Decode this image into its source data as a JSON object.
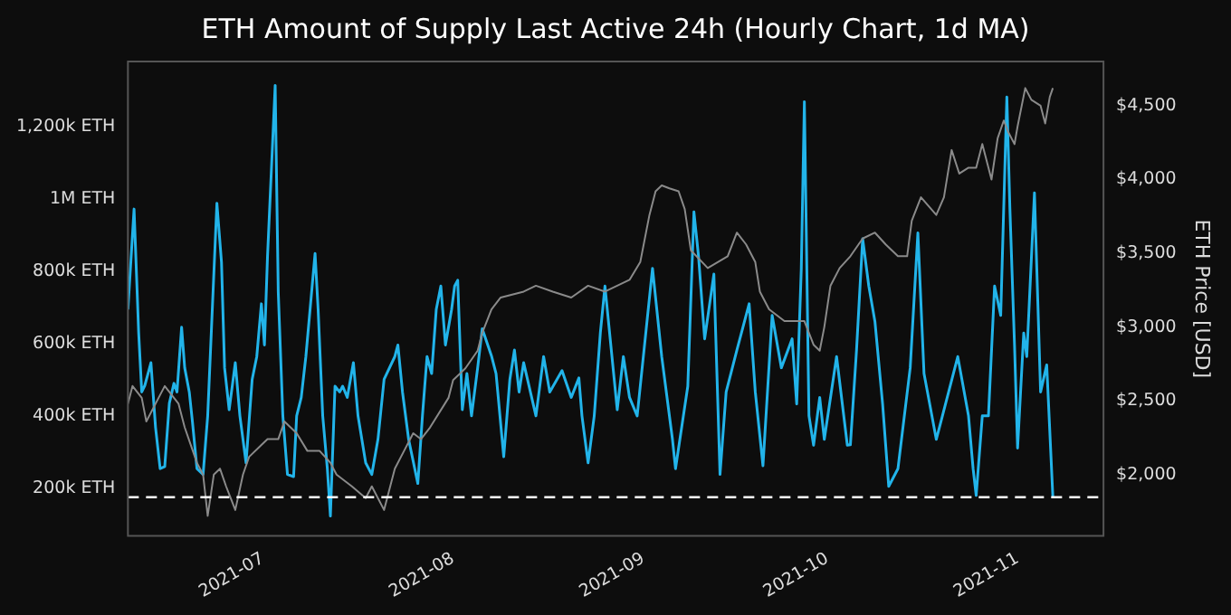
{
  "chart_data": {
    "type": "line",
    "title": "ETH Amount of Supply Last Active 24h (Hourly Chart, 1d MA)",
    "y2label": "ETH Price [USD]",
    "xlim": [
      "2021-06-09",
      "2021-11-15"
    ],
    "xticks": [
      "2021-07",
      "2021-08",
      "2021-09",
      "2021-10",
      "2021-11"
    ],
    "ylim": [
      68000,
      1380000
    ],
    "yticks": [
      {
        "value": 200000,
        "label": "200k ETH"
      },
      {
        "value": 400000,
        "label": "400k ETH"
      },
      {
        "value": 600000,
        "label": "600k ETH"
      },
      {
        "value": 800000,
        "label": "800k ETH"
      },
      {
        "value": 1000000,
        "label": "1M ETH"
      },
      {
        "value": 1200000,
        "label": "1,200k ETH"
      }
    ],
    "y2lim": [
      1584,
      4800
    ],
    "y2ticks": [
      {
        "value": 2000,
        "label": "$2,000"
      },
      {
        "value": 2500,
        "label": "$2,500"
      },
      {
        "value": 3000,
        "label": "$3,000"
      },
      {
        "value": 3500,
        "label": "$3,500"
      },
      {
        "value": 4000,
        "label": "$4,000"
      },
      {
        "value": 4500,
        "label": "$4,500"
      }
    ],
    "grid": false,
    "legend": false,
    "marker": "none",
    "line_style": "solid",
    "ref_lines": [
      {
        "axis": "y",
        "value": 175000,
        "color": "#ffffff",
        "line_style": "dashed"
      }
    ],
    "series": [
      {
        "axis": "y2",
        "color": "#8a8a8a",
        "x": [
          "2021-06-09",
          "2021-06-09T18:00",
          "2021-06-11T06:00",
          "2021-06-12",
          "2021-06-14",
          "2021-06-15",
          "2021-06-17T06:00",
          "2021-06-18T06:00",
          "2021-06-19T06:00",
          "2021-06-20T06:00",
          "2021-06-21T06:00",
          "2021-06-22",
          "2021-06-23",
          "2021-06-24",
          "2021-06-25",
          "2021-06-26T12:00",
          "2021-06-27T18:00",
          "2021-06-28T18:00",
          "2021-06-30T18:00",
          "2021-07-01T18:00",
          "2021-07-03T12:00",
          "2021-07-04T12:00",
          "2021-07-06T12:00",
          "2021-07-08T06:00",
          "2021-07-10T06:00",
          "2021-07-12",
          "2021-07-13",
          "2021-07-15T12:00",
          "2021-07-17T18:00",
          "2021-07-18T18:00",
          "2021-07-20T18:00",
          "2021-07-22T12:00",
          "2021-07-24",
          "2021-07-25T12:00",
          "2021-07-26T18:00",
          "2021-07-28T06:00",
          "2021-07-31T06:00",
          "2021-08-01",
          "2021-08-03",
          "2021-08-05",
          "2021-08-05T18:00",
          "2021-08-07T06:00",
          "2021-08-08T18:00",
          "2021-08-12T12:00",
          "2021-08-14T12:00",
          "2021-08-17T06:00",
          "2021-08-20T06:00",
          "2021-08-23",
          "2021-08-25T18:00",
          "2021-08-27T18:00",
          "2021-08-29T18:00",
          "2021-08-31T12:00",
          "2021-09-02",
          "2021-09-03",
          "2021-09-04",
          "2021-09-05T06:00",
          "2021-09-06T18:00",
          "2021-09-07T18:00",
          "2021-09-08T18:00",
          "2021-09-11T12:00",
          "2021-09-14T18:00",
          "2021-09-16T06:00",
          "2021-09-17T18:00",
          "2021-09-19T06:00",
          "2021-09-20",
          "2021-09-21T12:00",
          "2021-09-24",
          "2021-09-27T06:00",
          "2021-09-28T18:00",
          "2021-09-29T18:00",
          "2021-09-30T12:00",
          "2021-10-01T12:00",
          "2021-10-03",
          "2021-10-04T18:00",
          "2021-10-06T18:00",
          "2021-10-08T18:00",
          "2021-10-10T12:00",
          "2021-10-12T12:00",
          "2021-10-14",
          "2021-10-14T18:00",
          "2021-10-16T06:00",
          "2021-10-18T18:00",
          "2021-10-20",
          "2021-10-21T06:00",
          "2021-10-22T12:00",
          "2021-10-24",
          "2021-10-25T06:00",
          "2021-10-26T06:00",
          "2021-10-27T18:00",
          "2021-10-28T18:00",
          "2021-10-29T18:00",
          "2021-10-30T12:00",
          "2021-10-31T12:00",
          "2021-11-01",
          "2021-11-02T06:00",
          "2021-11-03T06:00",
          "2021-11-04T18:00",
          "2021-11-05T12:00",
          "2021-11-06T06:00",
          "2021-11-06T18:00"
        ],
        "values": [
          2480,
          2600,
          2520,
          2360,
          2520,
          2600,
          2480,
          2320,
          2200,
          2080,
          2000,
          1720,
          2000,
          2040,
          1920,
          1760,
          2000,
          2120,
          2200,
          2240,
          2240,
          2360,
          2280,
          2160,
          2160,
          2080,
          2000,
          1920,
          1840,
          1920,
          1760,
          2040,
          2160,
          2280,
          2240,
          2320,
          2520,
          2640,
          2720,
          2840,
          2960,
          3120,
          3200,
          3240,
          3280,
          3240,
          3200,
          3280,
          3240,
          3280,
          3320,
          3440,
          3760,
          3920,
          3960,
          3940,
          3920,
          3800,
          3520,
          3400,
          3480,
          3640,
          3560,
          3440,
          3240,
          3120,
          3040,
          3040,
          2880,
          2840,
          3000,
          3280,
          3400,
          3480,
          3600,
          3640,
          3560,
          3480,
          3480,
          3720,
          3880,
          3760,
          3880,
          4200,
          4040,
          4080,
          4080,
          4240,
          4000,
          4280,
          4400,
          4320,
          4240,
          4360,
          4620,
          4540,
          4500,
          4380,
          4560,
          4620
        ]
      },
      {
        "axis": "y",
        "color": "#22b4ea",
        "x": [
          "2021-06-09",
          "2021-06-10",
          "2021-06-10T18:00",
          "2021-06-11T06:00",
          "2021-06-11T18:00",
          "2021-06-12T18:00",
          "2021-06-13T12:00",
          "2021-06-14T06:00",
          "2021-06-15",
          "2021-06-15T18:00",
          "2021-06-16T12:00",
          "2021-06-17",
          "2021-06-17T18:00",
          "2021-06-18T06:00",
          "2021-06-19",
          "2021-06-19T12:00",
          "2021-06-20T06:00",
          "2021-06-21T06:00",
          "2021-06-22",
          "2021-06-22T18:00",
          "2021-06-23T12:00",
          "2021-06-24T06:00",
          "2021-06-24T18:00",
          "2021-06-25T12:00",
          "2021-06-26T12:00",
          "2021-06-27T06:00",
          "2021-06-28T06:00",
          "2021-06-29T06:00",
          "2021-06-30",
          "2021-06-30T18:00",
          "2021-07-01T06:00",
          "2021-07-01T18:00",
          "2021-07-03",
          "2021-07-03T12:00",
          "2021-07-04T06:00",
          "2021-07-05",
          "2021-07-06",
          "2021-07-06T12:00",
          "2021-07-07T06:00",
          "2021-07-08",
          "2021-07-09T12:00",
          "2021-07-10",
          "2021-07-10T18:00",
          "2021-07-11T12:00",
          "2021-07-12",
          "2021-07-12T18:00",
          "2021-07-13T12:00",
          "2021-07-14",
          "2021-07-14T18:00",
          "2021-07-15T18:00",
          "2021-07-16T12:00",
          "2021-07-17T18:00",
          "2021-07-18T18:00",
          "2021-07-19T18:00",
          "2021-07-20T18:00",
          "2021-07-22T12:00",
          "2021-07-23",
          "2021-07-23T18:00",
          "2021-07-24T18:00",
          "2021-07-26T06:00",
          "2021-07-27",
          "2021-07-27T18:00",
          "2021-07-28T12:00",
          "2021-07-29T06:00",
          "2021-07-30",
          "2021-07-30T18:00",
          "2021-07-31T18:00",
          "2021-08-01T06:00",
          "2021-08-01T18:00",
          "2021-08-02T12:00",
          "2021-08-03T06:00",
          "2021-08-04",
          "2021-08-05",
          "2021-08-05T18:00",
          "2021-08-07T06:00",
          "2021-08-08",
          "2021-08-09T06:00",
          "2021-08-10T06:00",
          "2021-08-11",
          "2021-08-11T18:00",
          "2021-08-12T12:00",
          "2021-08-14T12:00",
          "2021-08-15T18:00",
          "2021-08-16T18:00",
          "2021-08-18T18:00",
          "2021-08-20T06:00",
          "2021-08-21T12:00",
          "2021-08-22",
          "2021-08-23",
          "2021-08-24",
          "2021-08-25",
          "2021-08-25T18:00",
          "2021-08-27T18:00",
          "2021-08-28T18:00",
          "2021-08-29T18:00",
          "2021-08-31",
          "2021-09-02T12:00",
          "2021-09-04",
          "2021-09-05T18:00",
          "2021-09-06T06:00",
          "2021-09-08T06:00",
          "2021-09-09T06:00",
          "2021-09-10",
          "2021-09-11",
          "2021-09-12T12:00",
          "2021-09-13T12:00",
          "2021-09-14T12:00",
          "2021-09-16T06:00",
          "2021-09-18T06:00",
          "2021-09-19T06:00",
          "2021-09-20T12:00",
          "2021-09-22",
          "2021-09-23T12:00",
          "2021-09-25T06:00",
          "2021-09-26",
          "2021-09-26T18:00",
          "2021-09-27T06:00",
          "2021-09-28",
          "2021-09-28T18:00",
          "2021-09-29T18:00",
          "2021-09-30T12:00",
          "2021-10-02T12:00",
          "2021-10-04T06:00",
          "2021-10-04T18:00",
          "2021-10-05T18:00",
          "2021-10-06T18:00",
          "2021-10-07T18:00",
          "2021-10-08T18:00",
          "2021-10-10",
          "2021-10-11",
          "2021-10-12T12:00",
          "2021-10-14T12:00",
          "2021-10-15T18:00",
          "2021-10-16T18:00",
          "2021-10-18T18:00",
          "2021-10-19T18:00",
          "2021-10-22T06:00",
          "2021-10-24",
          "2021-10-24T18:00",
          "2021-10-25T06:00",
          "2021-10-26T06:00",
          "2021-10-27T06:00",
          "2021-10-28T06:00",
          "2021-10-29T06:00",
          "2021-10-30T06:00",
          "2021-10-30T18:00",
          "2021-10-31T12:00",
          "2021-11-01",
          "2021-11-02",
          "2021-11-02T12:00",
          "2021-11-03T18:00",
          "2021-11-04T18:00",
          "2021-11-05T18:00",
          "2021-11-06T18:00"
        ],
        "values": [
          694000,
          972000,
          630000,
          466000,
          484000,
          547000,
          368000,
          254000,
          260000,
          435000,
          490000,
          466000,
          645000,
          533000,
          466000,
          386000,
          254000,
          238000,
          400000,
          694000,
          988000,
          825000,
          533000,
          417000,
          547000,
          400000,
          270000,
          501000,
          564000,
          710000,
          596000,
          841000,
          1314000,
          743000,
          400000,
          238000,
          232000,
          400000,
          451000,
          564000,
          849000,
          694000,
          400000,
          254000,
          123000,
          482000,
          466000,
          482000,
          451000,
          547000,
          400000,
          270000,
          238000,
          335000,
          501000,
          564000,
          596000,
          466000,
          335000,
          213000,
          400000,
          564000,
          517000,
          694000,
          759000,
          596000,
          694000,
          759000,
          775000,
          417000,
          517000,
          400000,
          533000,
          641000,
          566000,
          517000,
          287000,
          501000,
          582000,
          466000,
          547000,
          400000,
          564000,
          466000,
          525000,
          451000,
          505000,
          400000,
          270000,
          400000,
          630000,
          759000,
          417000,
          564000,
          451000,
          400000,
          808000,
          564000,
          335000,
          254000,
          482000,
          964000,
          841000,
          613000,
          792000,
          238000,
          466000,
          582000,
          710000,
          466000,
          262000,
          678000,
          533000,
          613000,
          433000,
          808000,
          1269000,
          400000,
          319000,
          451000,
          335000,
          564000,
          319000,
          320000,
          582000,
          890000,
          759000,
          661000,
          433000,
          205000,
          254000,
          533000,
          906000,
          517000,
          335000,
          400000,
          564000,
          400000,
          254000,
          180000,
          400000,
          400000,
          759000,
          678000,
          1282000,
          972000,
          596000,
          311000,
          629000,
          564000,
          1017000,
          466000,
          541000,
          175000
        ]
      }
    ]
  }
}
